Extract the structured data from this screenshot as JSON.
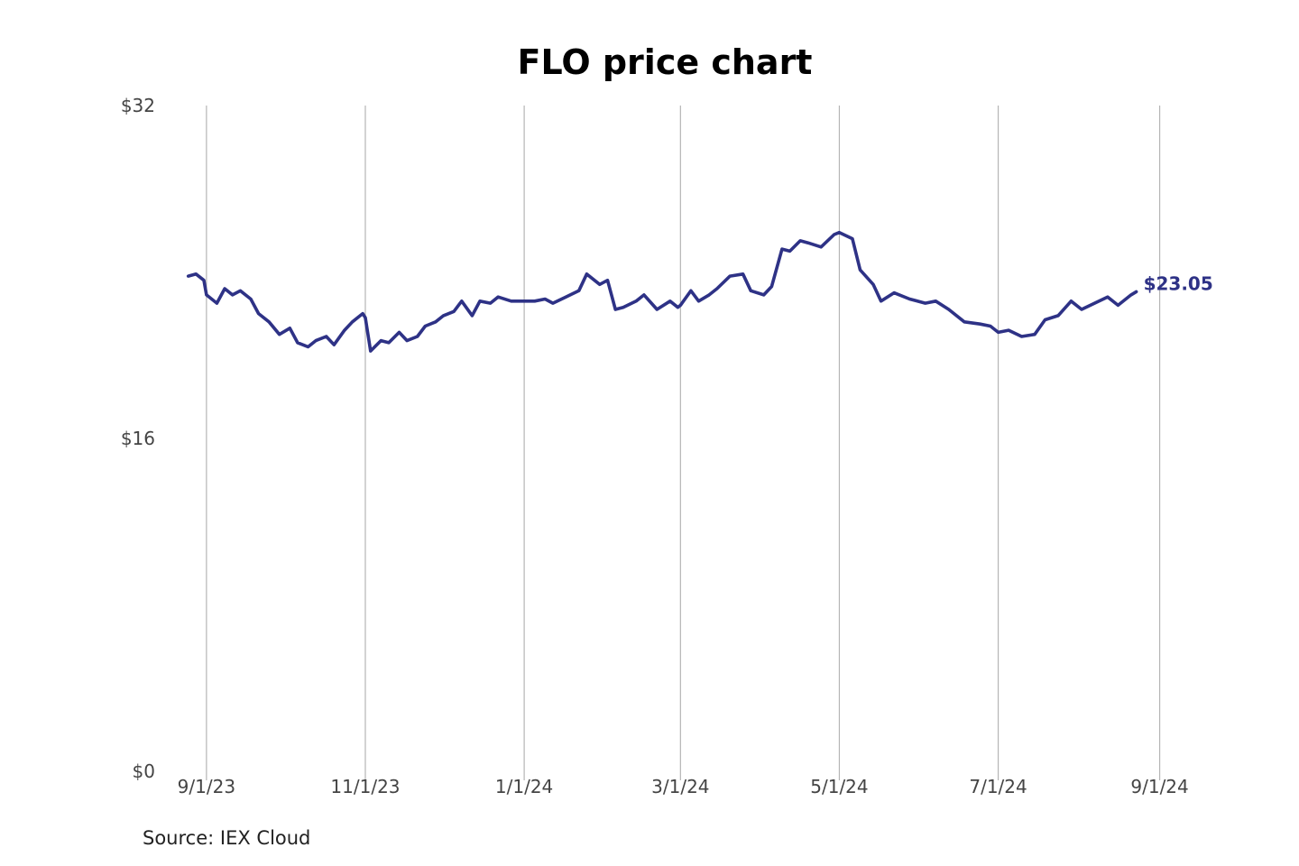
{
  "chart_data": {
    "type": "line",
    "title": "FLO price chart",
    "xlabel": "",
    "ylabel": "",
    "grid": "vertical",
    "legend": "none",
    "ylim": [
      0,
      32
    ],
    "y_ticks": [
      {
        "value": 0,
        "label": "$0"
      },
      {
        "value": 16,
        "label": "$16"
      },
      {
        "value": 32,
        "label": "$32"
      }
    ],
    "xlim": [
      "2023-08-22",
      "2024-09-06"
    ],
    "x_ticks": [
      {
        "value": "2023-09-01",
        "label": "9/1/23"
      },
      {
        "value": "2023-11-01",
        "label": "11/1/23"
      },
      {
        "value": "2024-01-01",
        "label": "1/1/24"
      },
      {
        "value": "2024-03-01",
        "label": "3/1/24"
      },
      {
        "value": "2024-05-01",
        "label": "5/1/24"
      },
      {
        "value": "2024-07-01",
        "label": "7/1/24"
      },
      {
        "value": "2024-09-01",
        "label": "9/1/24"
      }
    ],
    "end_label": "$23.05",
    "series": [
      {
        "color": "#2e3286",
        "x": [
          "2023-08-25",
          "2023-08-28",
          "2023-08-31",
          "2023-09-01",
          "2023-09-05",
          "2023-09-08",
          "2023-09-11",
          "2023-09-14",
          "2023-09-18",
          "2023-09-21",
          "2023-09-25",
          "2023-09-29",
          "2023-10-03",
          "2023-10-06",
          "2023-10-10",
          "2023-10-13",
          "2023-10-17",
          "2023-10-20",
          "2023-10-24",
          "2023-10-27",
          "2023-10-31",
          "2023-11-01",
          "2023-11-03",
          "2023-11-07",
          "2023-11-10",
          "2023-11-14",
          "2023-11-17",
          "2023-11-21",
          "2023-11-24",
          "2023-11-28",
          "2023-12-01",
          "2023-12-05",
          "2023-12-08",
          "2023-12-12",
          "2023-12-15",
          "2023-12-19",
          "2023-12-22",
          "2023-12-27",
          "2024-01-02",
          "2024-01-05",
          "2024-01-09",
          "2024-01-12",
          "2024-01-17",
          "2024-01-22",
          "2024-01-25",
          "2024-01-30",
          "2024-02-02",
          "2024-02-05",
          "2024-02-08",
          "2024-02-13",
          "2024-02-16",
          "2024-02-21",
          "2024-02-26",
          "2024-02-29",
          "2024-03-01",
          "2024-03-05",
          "2024-03-08",
          "2024-03-12",
          "2024-03-15",
          "2024-03-20",
          "2024-03-25",
          "2024-03-28",
          "2024-04-02",
          "2024-04-05",
          "2024-04-09",
          "2024-04-12",
          "2024-04-16",
          "2024-04-19",
          "2024-04-24",
          "2024-04-29",
          "2024-05-01",
          "2024-05-06",
          "2024-05-09",
          "2024-05-14",
          "2024-05-17",
          "2024-05-22",
          "2024-05-28",
          "2024-06-03",
          "2024-06-07",
          "2024-06-12",
          "2024-06-18",
          "2024-06-24",
          "2024-06-28",
          "2024-07-01",
          "2024-07-05",
          "2024-07-10",
          "2024-07-15",
          "2024-07-19",
          "2024-07-24",
          "2024-07-29",
          "2024-08-02",
          "2024-08-07",
          "2024-08-12",
          "2024-08-16",
          "2024-08-21",
          "2024-08-23"
        ],
        "y": [
          23.8,
          23.9,
          23.6,
          22.9,
          22.5,
          23.2,
          22.9,
          23.1,
          22.7,
          22.0,
          21.6,
          21.0,
          21.3,
          20.6,
          20.4,
          20.7,
          20.9,
          20.5,
          21.2,
          21.6,
          22.0,
          21.8,
          20.2,
          20.7,
          20.6,
          21.1,
          20.7,
          20.9,
          21.4,
          21.6,
          21.9,
          22.1,
          22.6,
          21.9,
          22.6,
          22.5,
          22.8,
          22.6,
          22.6,
          22.6,
          22.7,
          22.5,
          22.8,
          23.1,
          23.9,
          23.4,
          23.6,
          22.2,
          22.3,
          22.6,
          22.9,
          22.2,
          22.6,
          22.3,
          22.4,
          23.1,
          22.6,
          22.9,
          23.2,
          23.8,
          23.9,
          23.1,
          22.9,
          23.3,
          25.1,
          25.0,
          25.5,
          25.4,
          25.2,
          25.8,
          25.9,
          25.6,
          24.1,
          23.4,
          22.6,
          23.0,
          22.7,
          22.5,
          22.6,
          22.2,
          21.6,
          21.5,
          21.4,
          21.1,
          21.2,
          20.9,
          21.0,
          21.7,
          21.9,
          22.6,
          22.2,
          22.5,
          22.8,
          22.4,
          22.9,
          23.05
        ]
      }
    ]
  },
  "source_text": "Source: IEX Cloud"
}
